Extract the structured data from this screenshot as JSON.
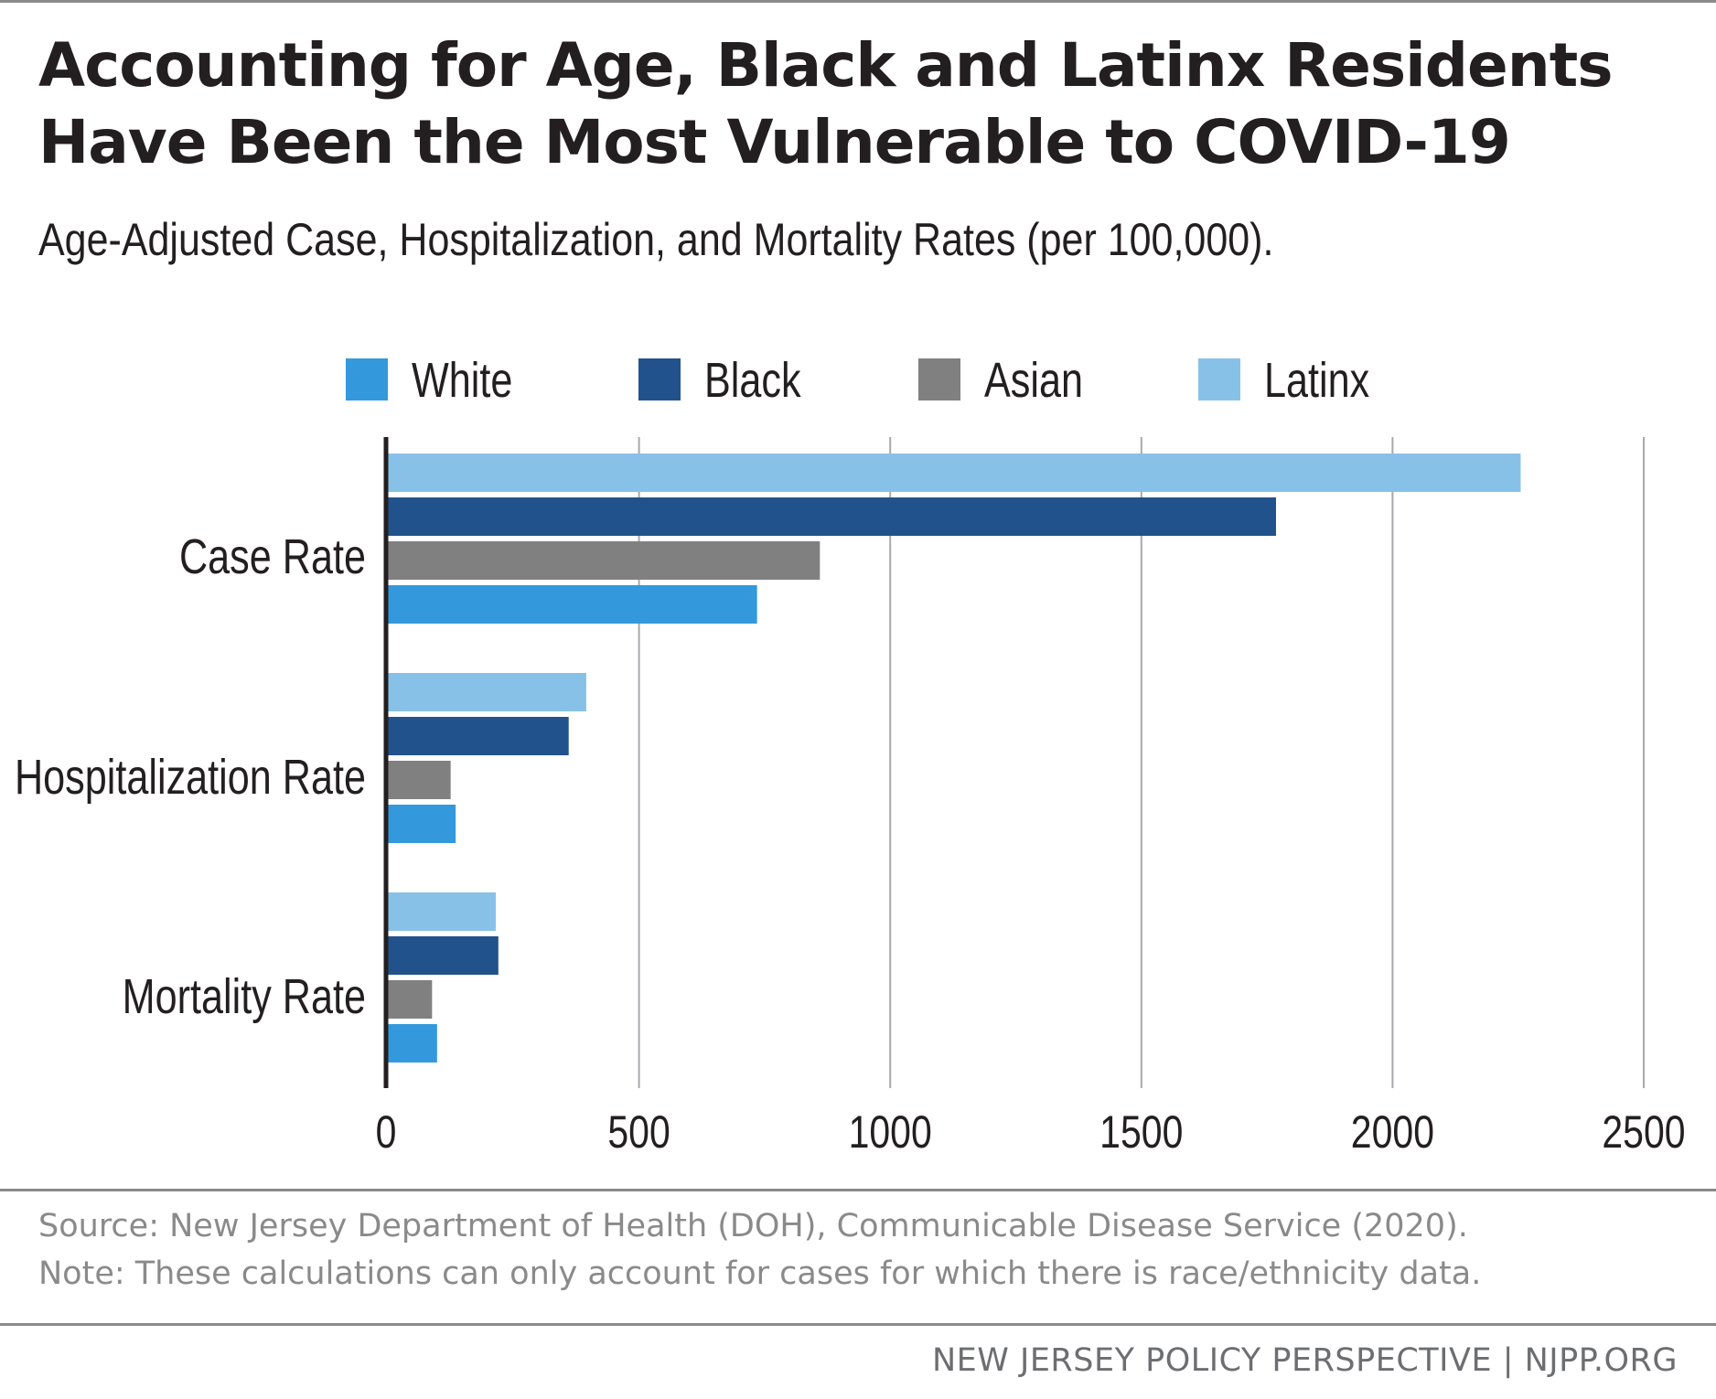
{
  "title_line1": "Accounting for Age, Black and Latinx Residents",
  "title_line2": "Have Been the Most Vulnerable to COVID-19",
  "subtitle": "Age-Adjusted Case, Hospitalization, and Mortality Rates (per 100,000).",
  "source": "Source: New Jersey Department of Health (DOH), Communicable Disease Service (2020).",
  "note": "Note: These calculations can only account for cases for which there is race/ethnicity data.",
  "brand": "NEW JERSEY POLICY PERSPECTIVE | NJPP.ORG",
  "chart_data": {
    "type": "bar",
    "orientation": "horizontal",
    "categories": [
      "Case Rate",
      "Hospitalization Rate",
      "Mortality Rate"
    ],
    "series": [
      {
        "name": "White",
        "color": "#3399dc",
        "values": [
          735,
          135,
          98
        ]
      },
      {
        "name": "Black",
        "color": "#22528b",
        "values": [
          1768,
          360,
          220
        ]
      },
      {
        "name": "Asian",
        "color": "#808080",
        "values": [
          860,
          125,
          88
        ]
      },
      {
        "name": "Latinx",
        "color": "#87c1e8",
        "values": [
          2255,
          395,
          215
        ]
      }
    ],
    "xlim": [
      0,
      2500
    ],
    "xticks": [
      "0",
      "500",
      "1000",
      "1500",
      "2000",
      "2500"
    ],
    "grid": true,
    "legend_position": "top"
  }
}
